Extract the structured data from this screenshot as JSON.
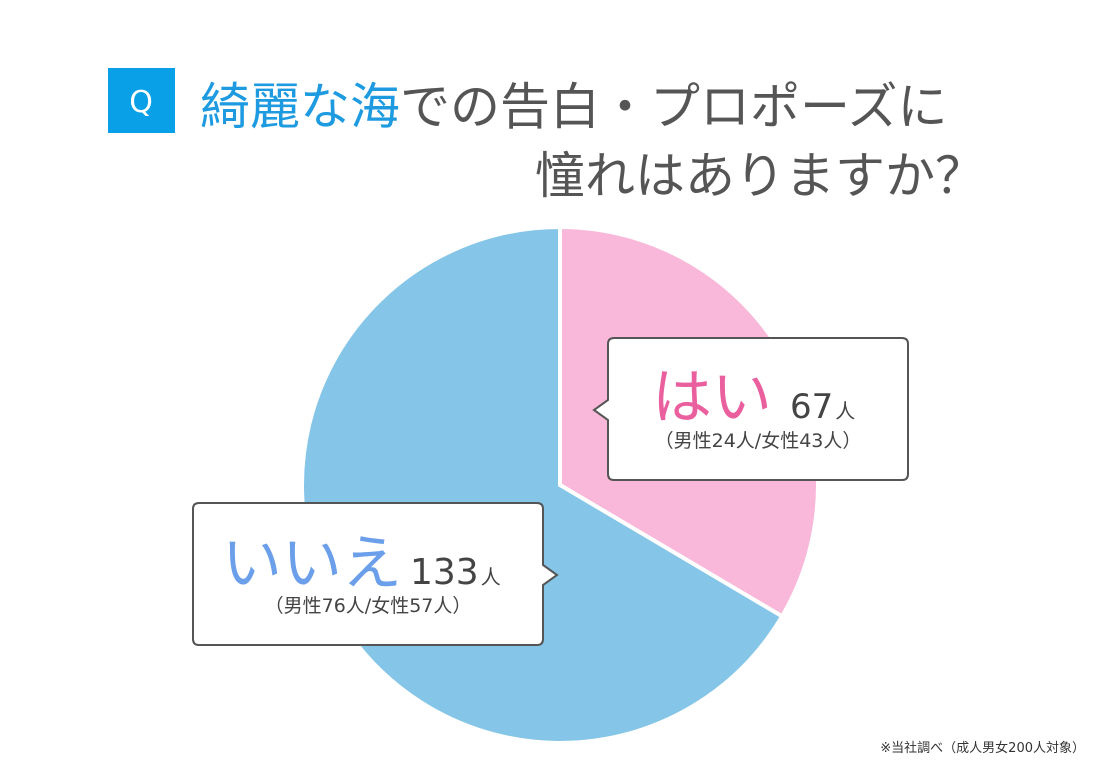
{
  "chart_data": {
    "type": "pie",
    "badge": "Q",
    "title_highlight": "綺麗な海",
    "title_rest": "での告白・プロポーズに",
    "title_line2": "憧れはありますか？",
    "categories": [
      "はい",
      "いいえ"
    ],
    "values": [
      67,
      133
    ],
    "unit": "人",
    "breakdowns": [
      "（男性24人/女性43人）",
      "（男性76人/女性57人）"
    ],
    "colors": [
      "#f9b8d9",
      "#85c5e8"
    ],
    "label_colors": [
      "#ea5f9d",
      "#6c9fea"
    ],
    "note": "※当社調べ（成人男女200人対象）"
  }
}
